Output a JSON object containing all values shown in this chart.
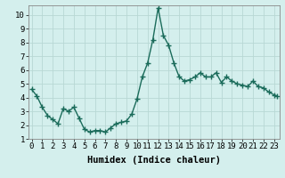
{
  "x": [
    0,
    0.5,
    1,
    1.5,
    2,
    2.5,
    3,
    3.5,
    4,
    4.5,
    5,
    5.5,
    6,
    6.5,
    7,
    7.5,
    8,
    8.5,
    9,
    9.5,
    10,
    10.5,
    11,
    11.5,
    12,
    12.5,
    13,
    13.5,
    14,
    14.5,
    15,
    15.5,
    16,
    16.5,
    17,
    17.5,
    18,
    18.5,
    19,
    19.5,
    20,
    20.5,
    21,
    21.5,
    22,
    22.5,
    23,
    23.3
  ],
  "y": [
    4.6,
    4.1,
    3.3,
    2.7,
    2.4,
    2.1,
    3.2,
    3.0,
    3.3,
    2.5,
    1.7,
    1.5,
    1.6,
    1.6,
    1.5,
    1.8,
    2.1,
    2.2,
    2.3,
    2.8,
    3.9,
    5.5,
    6.5,
    8.2,
    10.5,
    8.5,
    7.8,
    6.5,
    5.5,
    5.2,
    5.3,
    5.5,
    5.8,
    5.5,
    5.5,
    5.8,
    5.1,
    5.5,
    5.2,
    5.0,
    4.9,
    4.8,
    5.2,
    4.8,
    4.7,
    4.4,
    4.2,
    4.1
  ],
  "line_color": "#1a6b5a",
  "marker_color": "#1a6b5a",
  "bg_color": "#d4efed",
  "grid_color": "#b8d8d4",
  "xlabel": "Humidex (Indice chaleur)",
  "xlim": [
    -0.3,
    23.5
  ],
  "ylim": [
    1,
    10.7
  ],
  "xticks": [
    0,
    1,
    2,
    3,
    4,
    5,
    6,
    7,
    8,
    9,
    10,
    11,
    12,
    13,
    14,
    15,
    16,
    17,
    18,
    19,
    20,
    21,
    22,
    23
  ],
  "yticks": [
    1,
    2,
    3,
    4,
    5,
    6,
    7,
    8,
    9,
    10
  ],
  "tick_fontsize": 6.5,
  "xlabel_fontsize": 7.5,
  "marker_size": 4,
  "linewidth": 1.0
}
